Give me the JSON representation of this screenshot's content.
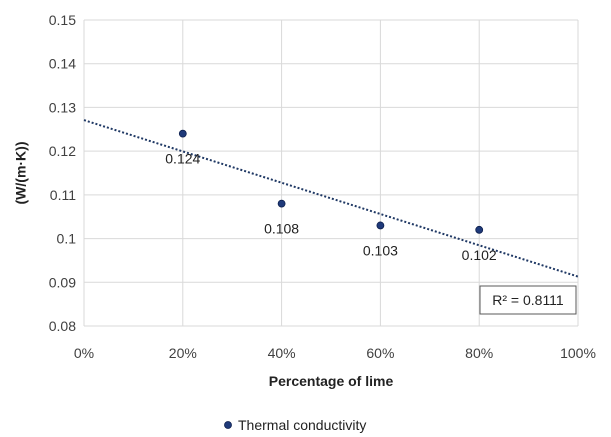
{
  "chart_data": {
    "type": "scatter",
    "title": "",
    "xlabel": "Percentage of lime",
    "ylabel": "(W/(m·K))",
    "xlim": [
      0,
      100
    ],
    "ylim": [
      0.08,
      0.15
    ],
    "x_ticks": [
      0,
      20,
      40,
      60,
      80,
      100
    ],
    "x_tick_labels": [
      "0%",
      "20%",
      "40%",
      "60%",
      "80%",
      "100%"
    ],
    "y_ticks": [
      0.08,
      0.09,
      0.1,
      0.11,
      0.12,
      0.13,
      0.14,
      0.15
    ],
    "y_tick_labels": [
      "0.08",
      "0.09",
      "0.1",
      "0.11",
      "0.12",
      "0.13",
      "0.14",
      "0.15"
    ],
    "grid": true,
    "legend_position": "bottom",
    "series": [
      {
        "name": "Thermal conductivity",
        "x": [
          20,
          40,
          60,
          80
        ],
        "y": [
          0.124,
          0.108,
          0.103,
          0.102
        ],
        "data_labels": [
          "0.124",
          "0.108",
          "0.103",
          "0.102"
        ],
        "color": "#1f3a7a"
      }
    ],
    "trendline": {
      "type": "linear",
      "x": [
        0,
        100
      ],
      "y": [
        0.1271,
        0.0913
      ],
      "color": "#1f3864",
      "style": "dotted",
      "r_squared_label": "R² = 0.8111"
    }
  }
}
